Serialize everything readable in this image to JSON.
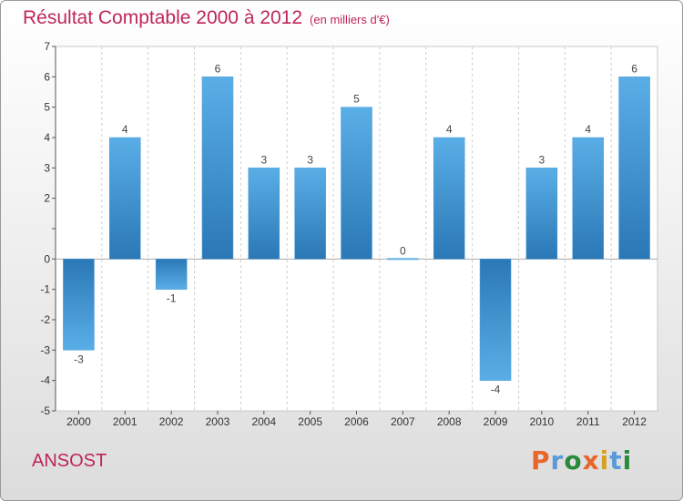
{
  "header": {
    "title": "Résultat Comptable 2000 à 2012",
    "unit": "(en milliers d'€)"
  },
  "footer": {
    "commune": "ANSOST",
    "logo": "Proxiti"
  },
  "colors": {
    "title": "#c0245c",
    "bar_light": "#5aaee6",
    "bar_dark": "#2a78b6",
    "logo": [
      "#e8662a",
      "#5a9ad8",
      "#2a8a3a",
      "#e8662a",
      "#d8a020",
      "#5a9ad8",
      "#2a8a3a"
    ]
  },
  "chart_data": {
    "type": "bar",
    "title": "Résultat Comptable 2000 à 2012",
    "subtitle": "(en milliers d'€)",
    "categories": [
      "2000",
      "2001",
      "2002",
      "2003",
      "2004",
      "2005",
      "2006",
      "2007",
      "2008",
      "2009",
      "2010",
      "2011",
      "2012"
    ],
    "values": [
      -3,
      4,
      -1,
      6,
      3,
      3,
      5,
      0,
      4,
      -4,
      3,
      4,
      6
    ],
    "ylim": [
      -5,
      7
    ],
    "yticks": [
      -5,
      -4,
      -3,
      -2,
      -1,
      0,
      2,
      3,
      4,
      5,
      6,
      7
    ],
    "grid": "vertical"
  }
}
